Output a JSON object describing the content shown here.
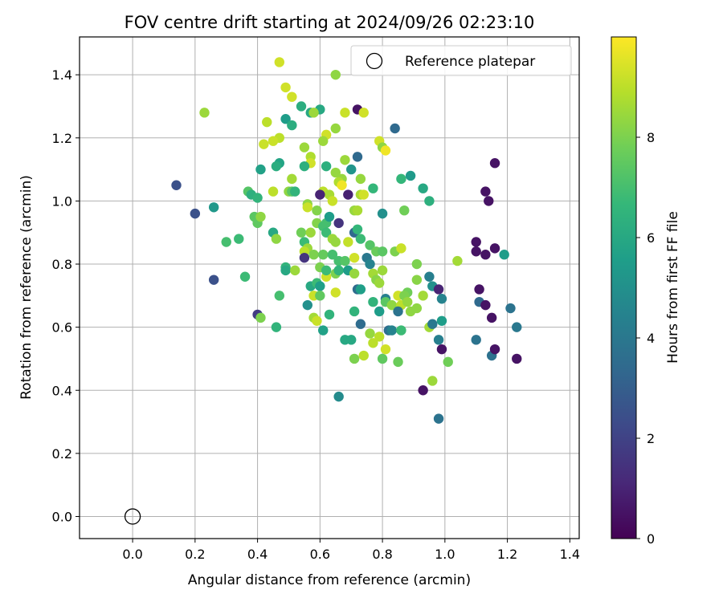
{
  "chart_data": {
    "type": "scatter",
    "title": "FOV centre drift starting at 2024/09/26 02:23:10",
    "xlabel": "Angular distance from reference (arcmin)",
    "ylabel": "Rotation from reference (arcmin)",
    "xlim": [
      -0.17,
      1.43
    ],
    "ylim": [
      -0.07,
      1.52
    ],
    "xticks": [
      "0.0",
      "0.2",
      "0.4",
      "0.6",
      "0.8",
      "1.0",
      "1.2",
      "1.4"
    ],
    "yticks": [
      "0.0",
      "0.2",
      "0.4",
      "0.6",
      "0.8",
      "1.0",
      "1.2",
      "1.4"
    ],
    "grid": true,
    "legend": {
      "placement": "top-right",
      "entries": [
        "Reference platepar"
      ]
    },
    "reference_point": {
      "x": 0.0,
      "y": 0.0
    },
    "colorbar": {
      "label": "Hours from first FF file",
      "range": [
        0,
        10
      ],
      "ticks": [
        "0",
        "2",
        "4",
        "6",
        "8"
      ],
      "colormap": "viridis"
    },
    "colormap_stops": [
      "#440154",
      "#482878",
      "#3e4989",
      "#31688e",
      "#26828e",
      "#1f9e89",
      "#35b779",
      "#6ece58",
      "#b5de2b",
      "#fde725"
    ],
    "points": [
      [
        0.47,
        1.44,
        9.3
      ],
      [
        0.65,
        1.4,
        8.3
      ],
      [
        0.49,
        1.36,
        9.3
      ],
      [
        0.51,
        1.33,
        9.3
      ],
      [
        0.54,
        1.3,
        6.2
      ],
      [
        0.6,
        1.29,
        6.0
      ],
      [
        0.57,
        1.28,
        6.0
      ],
      [
        0.58,
        1.28,
        8.5
      ],
      [
        0.68,
        1.28,
        9.2
      ],
      [
        0.72,
        1.29,
        0.5
      ],
      [
        0.74,
        1.28,
        9.3
      ],
      [
        0.23,
        1.28,
        8.5
      ],
      [
        0.49,
        1.26,
        5.5
      ],
      [
        0.51,
        1.24,
        6.2
      ],
      [
        0.43,
        1.25,
        9.0
      ],
      [
        0.65,
        1.23,
        8.4
      ],
      [
        0.62,
        1.21,
        9.3
      ],
      [
        0.61,
        1.19,
        8.5
      ],
      [
        0.84,
        1.23,
        3.4
      ],
      [
        0.79,
        1.19,
        9.3
      ],
      [
        0.8,
        1.17,
        8.3
      ],
      [
        0.81,
        1.16,
        9.8
      ],
      [
        0.47,
        1.2,
        9.0
      ],
      [
        0.45,
        1.19,
        9.2
      ],
      [
        0.42,
        1.18,
        9.2
      ],
      [
        0.55,
        1.17,
        8.5
      ],
      [
        0.57,
        1.14,
        8.8
      ],
      [
        0.57,
        1.12,
        9.3
      ],
      [
        0.62,
        1.11,
        6.3
      ],
      [
        0.55,
        1.11,
        6.3
      ],
      [
        0.47,
        1.12,
        5.8
      ],
      [
        0.46,
        1.11,
        6.2
      ],
      [
        0.41,
        1.1,
        5.7
      ],
      [
        0.51,
        1.07,
        8.6
      ],
      [
        0.68,
        1.13,
        8.5
      ],
      [
        0.72,
        1.14,
        3.4
      ],
      [
        0.7,
        1.1,
        5.2
      ],
      [
        0.65,
        1.09,
        8.4
      ],
      [
        0.67,
        1.07,
        8.4
      ],
      [
        0.73,
        1.07,
        8.4
      ],
      [
        0.66,
        1.06,
        8.8
      ],
      [
        0.67,
        1.05,
        9.8
      ],
      [
        0.61,
        1.03,
        9.0
      ],
      [
        0.63,
        1.02,
        8.7
      ],
      [
        0.6,
        1.02,
        1.0
      ],
      [
        0.64,
        1.0,
        9.2
      ],
      [
        0.69,
        1.02,
        0.9
      ],
      [
        0.73,
        1.02,
        8.7
      ],
      [
        0.74,
        1.02,
        9.3
      ],
      [
        0.77,
        1.04,
        6.6
      ],
      [
        0.86,
        1.07,
        6.6
      ],
      [
        0.89,
        1.08,
        5.4
      ],
      [
        0.93,
        1.04,
        6.0
      ],
      [
        0.95,
        1.0,
        6.3
      ],
      [
        0.14,
        1.05,
        2.5
      ],
      [
        0.2,
        0.96,
        2.5
      ],
      [
        0.26,
        0.98,
        5.3
      ],
      [
        0.37,
        1.03,
        7.3
      ],
      [
        0.38,
        1.02,
        6.3
      ],
      [
        0.4,
        1.01,
        6.5
      ],
      [
        0.45,
        1.03,
        9.0
      ],
      [
        0.5,
        1.03,
        8.3
      ],
      [
        0.51,
        1.03,
        7.4
      ],
      [
        0.52,
        1.03,
        6.5
      ],
      [
        0.56,
        0.99,
        8.3
      ],
      [
        0.56,
        0.98,
        9.2
      ],
      [
        0.59,
        0.97,
        8.1
      ],
      [
        0.59,
        0.93,
        8.1
      ],
      [
        0.62,
        0.93,
        7.0
      ],
      [
        0.63,
        0.95,
        5.5
      ],
      [
        0.66,
        0.93,
        1.5
      ],
      [
        0.71,
        0.97,
        8.4
      ],
      [
        0.72,
        0.97,
        8.7
      ],
      [
        0.8,
        0.96,
        5.0
      ],
      [
        0.87,
        0.97,
        7.8
      ],
      [
        0.39,
        0.95,
        7.4
      ],
      [
        0.4,
        0.93,
        7.5
      ],
      [
        0.41,
        0.95,
        8.3
      ],
      [
        0.45,
        0.9,
        6.0
      ],
      [
        0.46,
        0.88,
        8.3
      ],
      [
        0.54,
        0.9,
        7.8
      ],
      [
        0.57,
        0.9,
        8.5
      ],
      [
        0.61,
        0.92,
        7.0
      ],
      [
        0.62,
        0.9,
        6.8
      ],
      [
        0.64,
        0.88,
        8.5
      ],
      [
        0.65,
        0.87,
        8.4
      ],
      [
        0.3,
        0.87,
        7.0
      ],
      [
        0.34,
        0.88,
        6.8
      ],
      [
        0.55,
        0.87,
        6.8
      ],
      [
        0.56,
        0.85,
        8.5
      ],
      [
        0.55,
        0.84,
        9.0
      ],
      [
        0.55,
        0.82,
        1.5
      ],
      [
        0.58,
        0.83,
        8.0
      ],
      [
        0.61,
        0.83,
        7.6
      ],
      [
        0.64,
        0.83,
        7.0
      ],
      [
        0.66,
        0.81,
        7.0
      ],
      [
        0.69,
        0.87,
        9.1
      ],
      [
        0.71,
        0.9,
        3.4
      ],
      [
        0.72,
        0.91,
        6.6
      ],
      [
        0.73,
        0.88,
        6.8
      ],
      [
        0.76,
        0.86,
        7.3
      ],
      [
        0.78,
        0.84,
        7.7
      ],
      [
        0.8,
        0.84,
        7.4
      ],
      [
        0.84,
        0.84,
        8.0
      ],
      [
        0.86,
        0.85,
        9.2
      ],
      [
        0.68,
        0.81,
        7.3
      ],
      [
        0.71,
        0.82,
        9.3
      ],
      [
        0.75,
        0.82,
        4.0
      ],
      [
        0.76,
        0.8,
        4.5
      ],
      [
        0.36,
        0.76,
        6.8
      ],
      [
        0.49,
        0.79,
        6.5
      ],
      [
        0.49,
        0.78,
        6.0
      ],
      [
        0.52,
        0.78,
        8.5
      ],
      [
        0.6,
        0.79,
        8.0
      ],
      [
        0.62,
        0.76,
        9.3
      ],
      [
        0.62,
        0.78,
        6.8
      ],
      [
        0.65,
        0.77,
        8.0
      ],
      [
        0.66,
        0.78,
        6.5
      ],
      [
        0.69,
        0.78,
        5.5
      ],
      [
        0.71,
        0.77,
        8.4
      ],
      [
        0.77,
        0.77,
        8.6
      ],
      [
        0.78,
        0.75,
        8.2
      ],
      [
        0.8,
        0.78,
        8.5
      ],
      [
        0.91,
        0.8,
        8.0
      ],
      [
        0.91,
        0.75,
        8.2
      ],
      [
        0.95,
        0.76,
        4.3
      ],
      [
        0.96,
        0.73,
        5.0
      ],
      [
        0.98,
        0.72,
        1.0
      ],
      [
        1.04,
        0.81,
        8.6
      ],
      [
        0.57,
        0.73,
        6.0
      ],
      [
        0.58,
        0.7,
        9.2
      ],
      [
        0.59,
        0.74,
        6.8
      ],
      [
        0.6,
        0.73,
        5.6
      ],
      [
        0.6,
        0.7,
        7.5
      ],
      [
        0.65,
        0.71,
        9.3
      ],
      [
        0.72,
        0.72,
        3.5
      ],
      [
        0.73,
        0.72,
        5.6
      ],
      [
        0.79,
        0.74,
        8.5
      ],
      [
        0.88,
        0.71,
        7.8
      ],
      [
        0.85,
        0.7,
        9.3
      ],
      [
        0.81,
        0.69,
        4.3
      ],
      [
        0.81,
        0.68,
        7.4
      ],
      [
        0.83,
        0.67,
        8.3
      ],
      [
        0.86,
        0.67,
        9.0
      ],
      [
        0.87,
        0.7,
        8.0
      ],
      [
        0.88,
        0.68,
        8.4
      ],
      [
        0.89,
        0.65,
        8.3
      ],
      [
        0.91,
        0.66,
        8.3
      ],
      [
        0.93,
        0.7,
        8.6
      ],
      [
        0.99,
        0.69,
        4.5
      ],
      [
        0.26,
        0.75,
        2.5
      ],
      [
        0.47,
        0.7,
        7.0
      ],
      [
        0.56,
        0.67,
        5.0
      ],
      [
        0.58,
        0.63,
        8.6
      ],
      [
        0.59,
        0.62,
        9.2
      ],
      [
        0.61,
        0.59,
        5.7
      ],
      [
        0.63,
        0.64,
        6.5
      ],
      [
        0.71,
        0.65,
        6.5
      ],
      [
        0.73,
        0.61,
        3.5
      ],
      [
        0.77,
        0.68,
        6.5
      ],
      [
        0.79,
        0.65,
        5.5
      ],
      [
        0.82,
        0.59,
        3.6
      ],
      [
        0.83,
        0.59,
        4.5
      ],
      [
        0.85,
        0.65,
        3.8
      ],
      [
        0.86,
        0.59,
        6.8
      ],
      [
        0.95,
        0.6,
        8.6
      ],
      [
        0.96,
        0.61,
        4.0
      ],
      [
        0.98,
        0.56,
        4.3
      ],
      [
        0.99,
        0.62,
        5.5
      ],
      [
        1.01,
        0.49,
        7.8
      ],
      [
        0.4,
        0.64,
        1.8
      ],
      [
        0.41,
        0.63,
        8.0
      ],
      [
        0.46,
        0.6,
        6.5
      ],
      [
        0.68,
        0.56,
        6.0
      ],
      [
        0.7,
        0.56,
        6.0
      ],
      [
        0.71,
        0.5,
        8.0
      ],
      [
        0.74,
        0.51,
        9.0
      ],
      [
        0.76,
        0.58,
        8.4
      ],
      [
        0.77,
        0.55,
        9.0
      ],
      [
        0.79,
        0.57,
        9.0
      ],
      [
        0.8,
        0.5,
        7.5
      ],
      [
        0.81,
        0.53,
        9.3
      ],
      [
        0.85,
        0.49,
        7.7
      ],
      [
        0.66,
        0.38,
        4.8
      ],
      [
        0.93,
        0.4,
        0.5
      ],
      [
        0.96,
        0.43,
        8.5
      ],
      [
        0.98,
        0.31,
        3.8
      ],
      [
        0.99,
        0.53,
        0.5
      ],
      [
        1.1,
        0.87,
        0.5
      ],
      [
        1.1,
        0.84,
        0.5
      ],
      [
        1.13,
        0.83,
        0.5
      ],
      [
        1.13,
        1.03,
        0.5
      ],
      [
        1.14,
        1.0,
        0.5
      ],
      [
        1.16,
        1.12,
        0.5
      ],
      [
        1.16,
        0.85,
        0.5
      ],
      [
        1.11,
        0.72,
        0.5
      ],
      [
        1.11,
        0.68,
        3.4
      ],
      [
        1.13,
        0.67,
        0.5
      ],
      [
        1.15,
        0.63,
        0.5
      ],
      [
        1.1,
        0.56,
        3.8
      ],
      [
        1.15,
        0.51,
        3.7
      ],
      [
        1.16,
        0.53,
        0.5
      ],
      [
        1.19,
        0.83,
        5.5
      ],
      [
        1.21,
        0.66,
        3.8
      ],
      [
        1.23,
        0.6,
        4.0
      ],
      [
        1.23,
        0.5,
        0.5
      ]
    ]
  }
}
